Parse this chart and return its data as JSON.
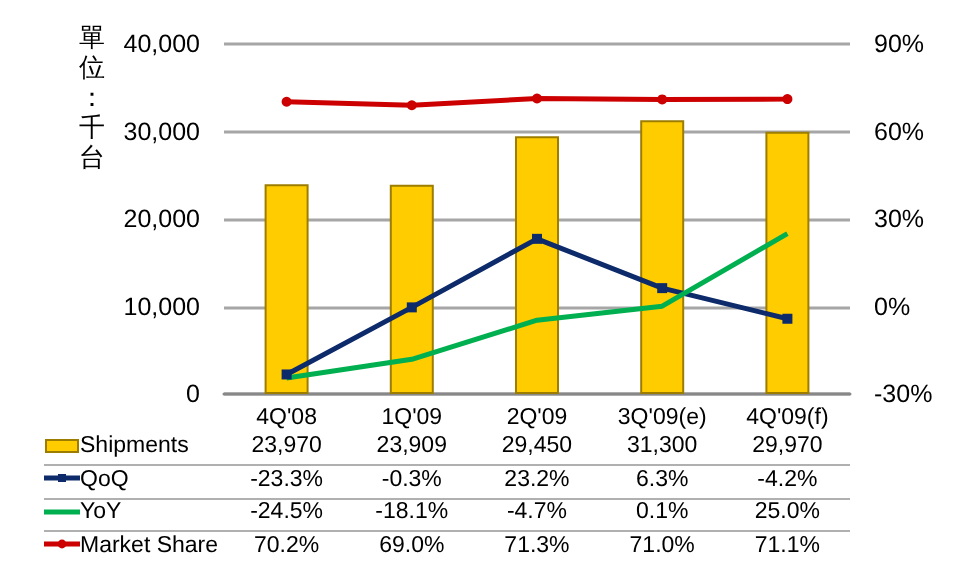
{
  "chart_data": {
    "type": "bar",
    "ylabel": "單位：千台",
    "categories": [
      "4Q'08",
      "1Q'09",
      "2Q'09",
      "3Q'09(e)",
      "4Q'09(f)"
    ],
    "series": [
      {
        "name": "Shipments",
        "color": "#ffcc00",
        "values": [
          23970,
          23909,
          29450,
          31300,
          29970
        ],
        "value_labels": [
          "23,970",
          "23,909",
          "29,450",
          "31,300",
          "29,970"
        ]
      },
      {
        "name": "QoQ",
        "type": "line",
        "axis": "y2",
        "color": "#0d2a6b",
        "marker": "square",
        "values": [
          -23.3,
          -0.3,
          23.2,
          6.3,
          -4.2
        ],
        "value_labels": [
          "-23.3%",
          "-0.3%",
          "23.2%",
          "6.3%",
          "-4.2%"
        ]
      },
      {
        "name": "YoY",
        "type": "line",
        "axis": "y2",
        "color": "#00b050",
        "marker": "none",
        "values": [
          -24.5,
          -18.1,
          -4.7,
          0.1,
          25.0
        ],
        "value_labels": [
          "-24.5%",
          "-18.1%",
          "-4.7%",
          "0.1%",
          "25.0%"
        ]
      },
      {
        "name": "Market Share",
        "type": "line",
        "axis": "y2",
        "color": "#cc0000",
        "marker": "circle",
        "values": [
          70.2,
          69.0,
          71.3,
          71.0,
          71.1
        ],
        "value_labels": [
          "70.2%",
          "69.0%",
          "71.3%",
          "71.0%",
          "71.1%"
        ]
      }
    ],
    "ylim": [
      0,
      40000
    ],
    "yticks": [
      {
        "value": 0,
        "label": "0"
      },
      {
        "value": 10000,
        "label": "10,000"
      },
      {
        "value": 20000,
        "label": "20,000"
      },
      {
        "value": 30000,
        "label": "30,000"
      },
      {
        "value": 40000,
        "label": "40,000"
      }
    ],
    "y2lim": [
      -30,
      90
    ],
    "y2ticks": [
      {
        "value": -30,
        "label": "-30%"
      },
      {
        "value": 0,
        "label": "0%"
      },
      {
        "value": 30,
        "label": "30%"
      },
      {
        "value": 60,
        "label": "60%"
      },
      {
        "value": 90,
        "label": "90%"
      }
    ],
    "grid": "y",
    "legend": "bottom",
    "line_style": "solid"
  }
}
